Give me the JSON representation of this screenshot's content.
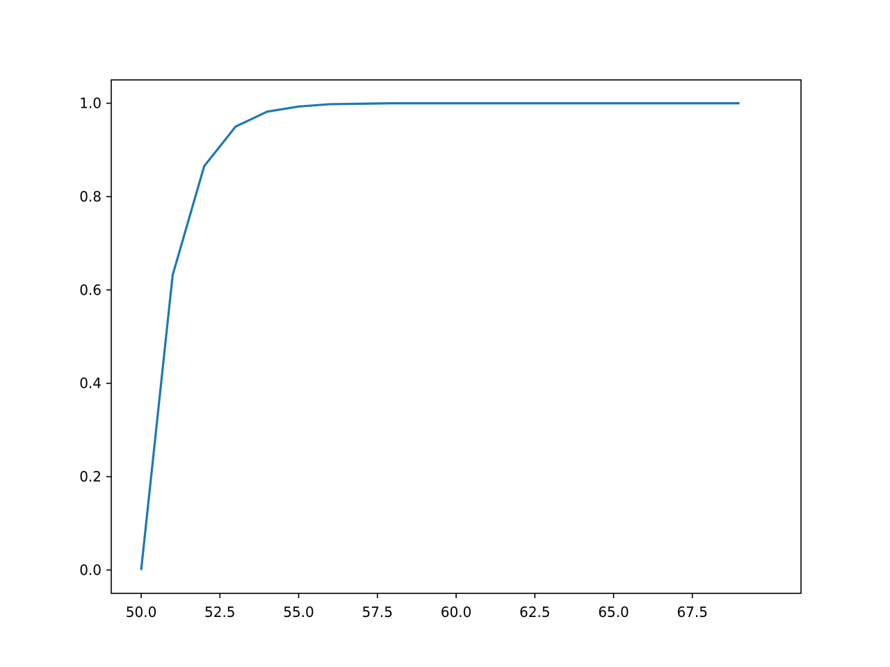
{
  "chart_data": {
    "type": "line",
    "title": "",
    "xlabel": "",
    "ylabel": "",
    "xlim": [
      49.05,
      70.95
    ],
    "ylim": [
      -0.05,
      1.05
    ],
    "grid": false,
    "x_ticks": [
      50.0,
      52.5,
      55.0,
      57.5,
      60.0,
      62.5,
      65.0,
      67.5
    ],
    "x_tick_labels": [
      "50.0",
      "52.5",
      "55.0",
      "57.5",
      "60.0",
      "62.5",
      "65.0",
      "67.5"
    ],
    "y_ticks": [
      0.0,
      0.2,
      0.4,
      0.6,
      0.8,
      1.0
    ],
    "y_tick_labels": [
      "0.0",
      "0.2",
      "0.4",
      "0.6",
      "0.8",
      "1.0"
    ],
    "series": [
      {
        "color": "#1f77b4",
        "x": [
          50,
          51,
          52,
          53,
          54,
          55,
          56,
          57,
          58,
          59,
          60,
          61,
          62,
          63,
          64,
          65,
          66,
          67,
          68,
          69
        ],
        "y": [
          0.0,
          0.632,
          0.865,
          0.95,
          0.982,
          0.993,
          0.998,
          0.999,
          1.0,
          1.0,
          1.0,
          1.0,
          1.0,
          1.0,
          1.0,
          1.0,
          1.0,
          1.0,
          1.0,
          1.0
        ]
      }
    ]
  }
}
